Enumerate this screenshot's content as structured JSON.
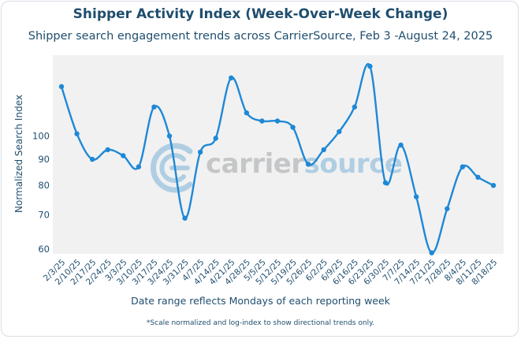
{
  "header": {
    "title": "Shipper Activity Index (Week-Over-Week Change)",
    "subtitle": "Shipper search engagement trends across CarrierSource, Feb 3 -August 24, 2025"
  },
  "watermark": {
    "part1": "carrier",
    "part2": "source",
    "icon": "carriersource-logo-icon"
  },
  "footnote": "*Scale normalized and log-index to show directional trends only.",
  "colors": {
    "line": "#1e88d6",
    "plot_bg": "#f1f1f1",
    "text": "#1f4e6e"
  },
  "chart_data": {
    "type": "line",
    "title": "Shipper Activity Index (Week-Over-Week Change)",
    "xlabel": "Date range reflects Mondays of each reporting week",
    "ylabel": "Normalized Search Index",
    "y_scale": "log",
    "yticks": [
      60,
      70,
      80,
      90,
      100
    ],
    "ylim": [
      59,
      145
    ],
    "grid": false,
    "categories": [
      "2/3/25",
      "2/10/25",
      "2/17/25",
      "2/24/25",
      "3/3/25",
      "3/10/25",
      "3/17/25",
      "3/24/25",
      "3/31/25",
      "4/7/25",
      "4/14/25",
      "4/21/25",
      "4/28/25",
      "5/5/25",
      "5/12/25",
      "5/19/25",
      "5/26/25",
      "6/2/25",
      "6/9/25",
      "6/16/25",
      "6/23/25",
      "6/30/25",
      "7/7/25",
      "7/14/25",
      "7/21/25",
      "7/28/25",
      "8/4/25",
      "8/11/25",
      "8/18/25"
    ],
    "series": [
      {
        "values": [
          125,
          101,
          90,
          94,
          91.5,
          87,
          114,
          100,
          69,
          93,
          99,
          130,
          111,
          107,
          107,
          104,
          88,
          94,
          102,
          114,
          137,
          81,
          96,
          76,
          59,
          72,
          87,
          83,
          80
        ]
      }
    ]
  }
}
